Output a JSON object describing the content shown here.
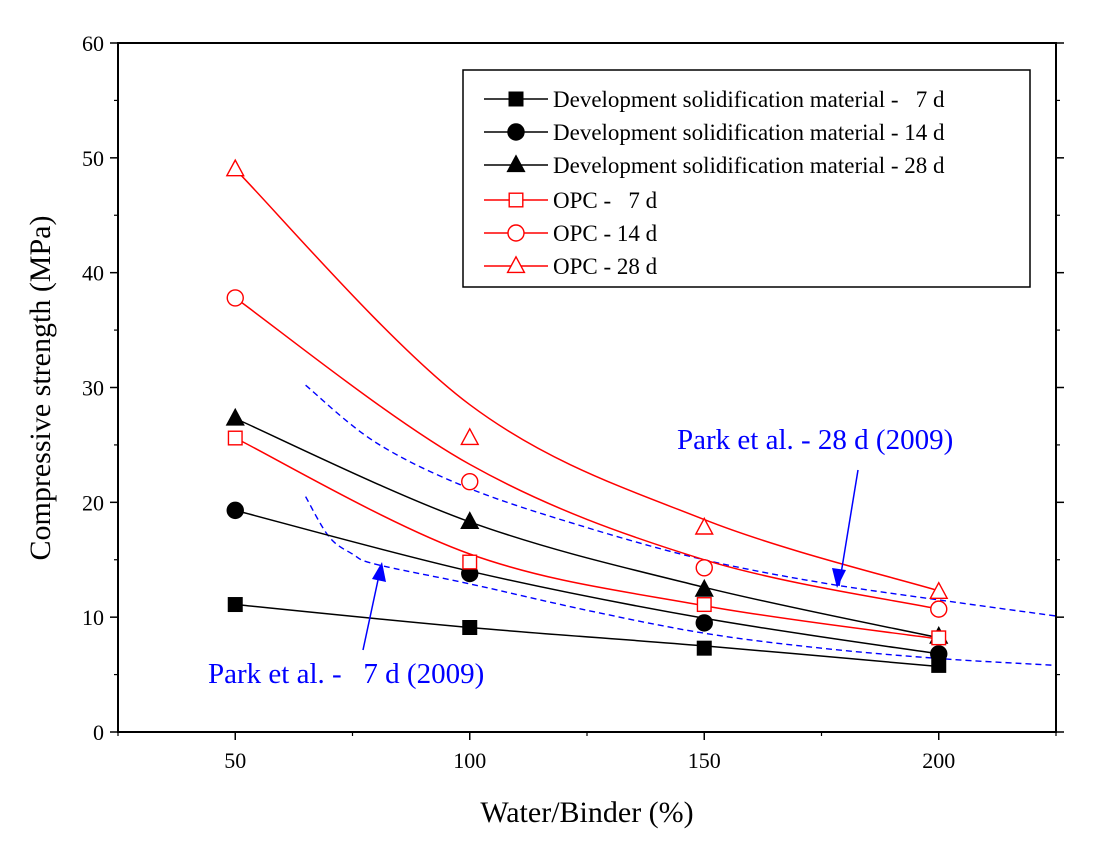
{
  "chart_data": {
    "type": "scatter",
    "title": "",
    "xlabel": "Water/Binder (%)",
    "ylabel": "Compressive strength (MPa)",
    "xlim": [
      25,
      225
    ],
    "ylim": [
      0,
      60
    ],
    "x_ticks": [
      50,
      100,
      150,
      200
    ],
    "x_tick_labels": [
      "50",
      "100",
      "150",
      "200"
    ],
    "y_ticks": [
      0,
      10,
      20,
      30,
      40,
      50,
      60
    ],
    "y_tick_labels": [
      "0",
      "10",
      "20",
      "30",
      "40",
      "50",
      "60"
    ],
    "grid": false,
    "legend_position": "top-right",
    "series": [
      {
        "name": "Development solidification material -   7 d",
        "color": "#000000",
        "marker": "square",
        "filled": true,
        "x": [
          50,
          100,
          150,
          200
        ],
        "values": [
          11.1,
          9.1,
          7.3,
          5.8
        ],
        "fit": [
          11.1,
          9.1,
          7.5,
          5.7
        ]
      },
      {
        "name": "Development solidification material - 14 d",
        "color": "#000000",
        "marker": "circle",
        "filled": true,
        "x": [
          50,
          100,
          150,
          200
        ],
        "values": [
          19.3,
          13.8,
          9.5,
          6.8
        ],
        "fit": [
          19.3,
          14.0,
          9.9,
          6.8
        ]
      },
      {
        "name": "Development solidification material - 28 d",
        "color": "#000000",
        "marker": "triangle",
        "filled": true,
        "x": [
          50,
          100,
          150,
          200
        ],
        "values": [
          27.3,
          18.3,
          12.4,
          8.3
        ],
        "fit": [
          27.3,
          18.3,
          12.6,
          8.2
        ]
      },
      {
        "name": "OPC -   7 d",
        "color": "#ff0000",
        "marker": "square",
        "filled": false,
        "x": [
          50,
          100,
          150,
          200
        ],
        "values": [
          25.6,
          14.8,
          11.1,
          8.2
        ],
        "fit": [
          25.6,
          15.5,
          11.0,
          8.1
        ]
      },
      {
        "name": "OPC - 14 d",
        "color": "#ff0000",
        "marker": "circle",
        "filled": false,
        "x": [
          50,
          100,
          150,
          200
        ],
        "values": [
          37.8,
          21.8,
          14.3,
          10.7
        ],
        "fit": [
          37.8,
          23.3,
          15.0,
          10.7
        ]
      },
      {
        "name": "OPC - 28 d",
        "color": "#ff0000",
        "marker": "triangle",
        "filled": false,
        "x": [
          50,
          100,
          150,
          200
        ],
        "values": [
          49.0,
          25.6,
          17.8,
          12.2
        ],
        "fit": [
          49.0,
          28.5,
          18.5,
          12.3
        ]
      }
    ],
    "reference_curves": [
      {
        "name": "Park et al. - 28 d (2009)",
        "color": "#0000ff",
        "style": "dashed",
        "x": [
          65,
          80,
          100,
          125,
          150,
          175,
          200,
          225
        ],
        "values": [
          30.2,
          25.2,
          21.2,
          17.8,
          15.0,
          13.0,
          11.5,
          10.1
        ]
      },
      {
        "name": "Park et al. -   7 d (2009)",
        "color": "#0000ff",
        "style": "dashed",
        "x": [
          65,
          70,
          75,
          80,
          100,
          125,
          150,
          175,
          200,
          225
        ],
        "values": [
          20.5,
          17.0,
          15.5,
          14.6,
          12.9,
          10.6,
          8.6,
          7.3,
          6.4,
          5.8
        ]
      }
    ],
    "annotations": [
      {
        "text": "Park et al. - 28 d (2009)",
        "color": "#0000ff",
        "points_to": {
          "x": 178,
          "y": 12.2
        }
      },
      {
        "text": "Park et al. -   7 d (2009)",
        "color": "#0000ff",
        "points_to": {
          "x": 82,
          "y": 14.8
        }
      }
    ]
  }
}
